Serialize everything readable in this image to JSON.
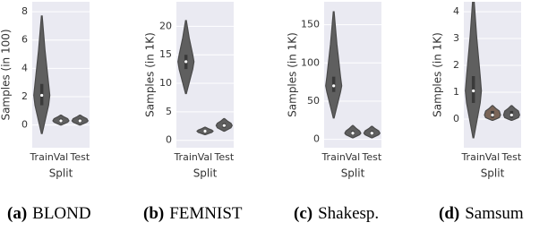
{
  "chart_data": [
    {
      "type": "violin",
      "ylabel": "Samples (in 100)",
      "xlabel": "Split",
      "caption_label": "(a)",
      "caption": "BLOND",
      "categories": [
        "Train",
        "Val",
        "Test"
      ],
      "colors": [
        "#5f5f5f",
        "#5f5f5f",
        "#5f5f5f"
      ],
      "min": [
        -0.6,
        0.0,
        0.0
      ],
      "q1": [
        1.4,
        0.2,
        0.2
      ],
      "median": [
        2.1,
        0.3,
        0.3
      ],
      "q3": [
        2.9,
        0.45,
        0.45
      ],
      "max": [
        7.7,
        0.7,
        0.7
      ],
      "ylim": [
        -1.6,
        8.7
      ],
      "yticks": [
        0,
        2,
        4,
        6,
        8
      ]
    },
    {
      "type": "violin",
      "ylabel": "Samples (in 1K)",
      "xlabel": "Split",
      "caption_label": "(b)",
      "caption": "FEMNIST",
      "categories": [
        "Train",
        "Val",
        "Test"
      ],
      "colors": [
        "#5f5f5f",
        "#5f5f5f",
        "#5f5f5f"
      ],
      "min": [
        8.2,
        1.0,
        1.6
      ],
      "q1": [
        12.5,
        1.4,
        2.2
      ],
      "median": [
        13.8,
        1.6,
        2.6
      ],
      "q3": [
        15,
        1.8,
        3
      ],
      "max": [
        21,
        2.3,
        3.8
      ],
      "ylim": [
        -1.3,
        24.3
      ],
      "yticks": [
        0,
        5,
        10,
        15,
        20
      ]
    },
    {
      "type": "violin",
      "ylabel": "Samples (in 1K)",
      "xlabel": "Split",
      "caption_label": "(c)",
      "caption": "Shakesp.",
      "categories": [
        "Train",
        "Val",
        "Test"
      ],
      "colors": [
        "#5f5f5f",
        "#5f5f5f",
        "#5f5f5f"
      ],
      "min": [
        28,
        2,
        2
      ],
      "q1": [
        62,
        6,
        6
      ],
      "median": [
        70,
        8,
        8
      ],
      "q3": [
        82,
        11,
        11
      ],
      "max": [
        167,
        18,
        17
      ],
      "ylim": [
        -11,
        180
      ],
      "yticks": [
        0,
        50,
        100,
        150
      ]
    },
    {
      "type": "violin",
      "ylabel": "Samples (in 1K)",
      "xlabel": "Split",
      "caption_label": "(d)",
      "caption": "Samsum",
      "categories": [
        "Train",
        "Val",
        "Test"
      ],
      "colors": [
        "#5f5f5f",
        "#7a6558",
        "#5f5f5f"
      ],
      "min": [
        -0.7,
        -0.05,
        -0.05
      ],
      "q1": [
        0.6,
        0.05,
        0.05
      ],
      "median": [
        1.05,
        0.15,
        0.15
      ],
      "q3": [
        1.6,
        0.3,
        0.3
      ],
      "max": [
        4.6,
        0.5,
        0.5
      ],
      "ylim": [
        -1.07,
        4.37
      ],
      "yticks": [
        0,
        1,
        2,
        3,
        4
      ]
    }
  ]
}
